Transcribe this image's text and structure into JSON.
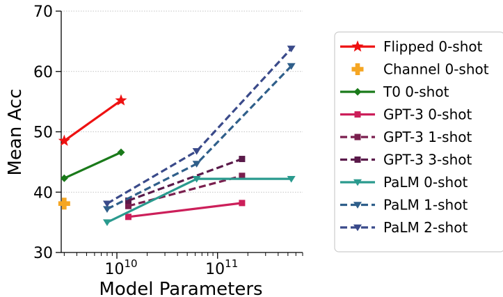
{
  "chart_data": {
    "type": "line",
    "xlabel": "Model Parameters",
    "ylabel": "Mean Acc",
    "x_scale": "log",
    "xlim": [
      2800000000.0,
      700000000000.0
    ],
    "ylim": [
      30,
      70
    ],
    "y_ticks": [
      "30",
      "40",
      "50",
      "60",
      "70"
    ],
    "x_ticks": [
      {
        "value": 10000000000.0,
        "base": "10",
        "exp": "10"
      },
      {
        "value": 100000000000.0,
        "base": "10",
        "exp": "11"
      }
    ],
    "grid": "horizontal dotted",
    "legend_position": "right, outside",
    "series": [
      {
        "name": "Flipped 0-shot",
        "color": "#ee1111",
        "marker": "star",
        "dash": "solid",
        "x": [
          3000000000.0,
          11000000000.0
        ],
        "y": [
          48.5,
          55.2
        ]
      },
      {
        "name": "Channel 0-shot",
        "color": "#f5a623",
        "marker": "plus",
        "dash": "none",
        "x": [
          3000000000.0
        ],
        "y": [
          38.1
        ]
      },
      {
        "name": "T0 0-shot",
        "color": "#1a7a1a",
        "marker": "diamond",
        "dash": "solid",
        "x": [
          3000000000.0,
          11000000000.0
        ],
        "y": [
          42.3,
          46.6
        ]
      },
      {
        "name": "GPT-3 0-shot",
        "color": "#cc1f5a",
        "marker": "square",
        "dash": "solid",
        "x": [
          13000000000.0,
          175000000000.0
        ],
        "y": [
          35.9,
          38.2
        ]
      },
      {
        "name": "GPT-3 1-shot",
        "color": "#7a1f4e",
        "marker": "square",
        "dash": "dashed",
        "x": [
          13000000000.0,
          175000000000.0
        ],
        "y": [
          37.7,
          42.7
        ]
      },
      {
        "name": "GPT-3 3-shot",
        "color": "#5a1a4a",
        "marker": "square",
        "dash": "dashed",
        "x": [
          13000000000.0,
          175000000000.0
        ],
        "y": [
          38.6,
          45.5
        ]
      },
      {
        "name": "PaLM 0-shot",
        "color": "#2a9a8e",
        "marker": "triangle-down",
        "dash": "solid",
        "x": [
          8000000000.0,
          62000000000.0,
          540000000000.0
        ],
        "y": [
          35.0,
          42.2,
          42.2
        ]
      },
      {
        "name": "PaLM 1-shot",
        "color": "#2f5f8a",
        "marker": "triangle-down",
        "dash": "dashed",
        "x": [
          8000000000.0,
          62000000000.0,
          540000000000.0
        ],
        "y": [
          37.2,
          44.7,
          60.9
        ]
      },
      {
        "name": "PaLM 2-shot",
        "color": "#3a4a8a",
        "marker": "triangle-down",
        "dash": "dashed",
        "x": [
          8000000000.0,
          62000000000.0,
          540000000000.0
        ],
        "y": [
          38.1,
          46.8,
          63.8
        ]
      }
    ]
  }
}
